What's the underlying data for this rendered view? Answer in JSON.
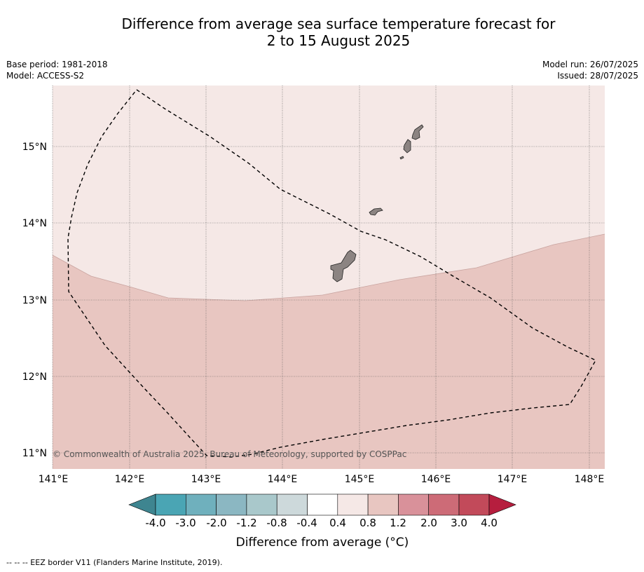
{
  "title_line1": "Difference from average sea surface temperature forecast for",
  "title_line2": "2 to 15 August 2025",
  "meta": {
    "base_period": "Base period: 1981-2018",
    "model": "Model: ACCESS-S2",
    "model_run": "Model run: 26/07/2025",
    "issued": "Issued: 28/07/2025"
  },
  "copyright": "© Commonwealth of Australia 2025, Bureau of Meteorology, supported by COSPPac",
  "footnote": "--  --  -- EEZ border V11 (Flanders Marine Institute, 2019).",
  "map": {
    "lon_ticks": [
      "141°E",
      "142°E",
      "143°E",
      "144°E",
      "145°E",
      "146°E",
      "147°E",
      "148°E"
    ],
    "lat_ticks": [
      "15°N",
      "14°N",
      "13°N",
      "12°N",
      "11°N"
    ],
    "lon_range": [
      141.0,
      148.2
    ],
    "lat_range": [
      10.8,
      15.8
    ],
    "zones": [
      {
        "range": "0.4 to 0.8",
        "color": "#f5e8e6"
      },
      {
        "range": "0.8 to 1.2",
        "color": "#e8c6c1"
      }
    ],
    "boundary_color": "#000000",
    "land_color": "#8c8482"
  },
  "colorbar": {
    "title": "Difference from average (°C)",
    "tick_labels": [
      "-4.0",
      "-3.0",
      "-2.0",
      "-1.2",
      "-0.8",
      "-0.4",
      "0.4",
      "0.8",
      "1.2",
      "2.0",
      "3.0",
      "4.0"
    ],
    "colors": [
      "#4aa5b4",
      "#6fb0bd",
      "#8bb7c2",
      "#a9c8cb",
      "#cdd9db",
      "#ffffff",
      "#f5e8e6",
      "#e8c6c1",
      "#d9919a",
      "#cd6b77",
      "#c24a5a"
    ],
    "under_color": "#3e8590",
    "over_color": "#b61e3e"
  }
}
